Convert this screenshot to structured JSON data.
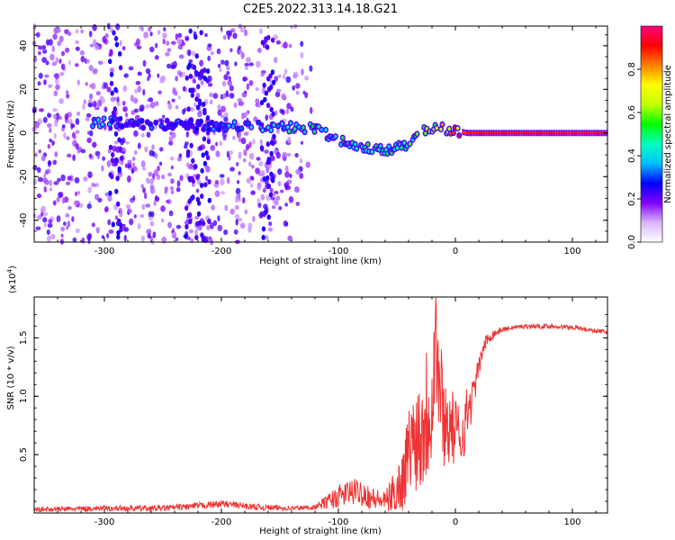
{
  "title": "C2E5.2022.313.14.18.G21",
  "chart_data": [
    {
      "type": "heatmap",
      "title": "C2E5.2022.313.14.18.G21",
      "xlabel": "Height of straight line (km)",
      "ylabel": "Frequency (Hz)",
      "xlim": [
        -360,
        130
      ],
      "ylim": [
        -50,
        49
      ],
      "x_ticks": [
        "-300",
        "-200",
        "-100",
        "0",
        "100"
      ],
      "y_ticks": [
        "-40",
        "-20",
        "0",
        "20",
        "40"
      ],
      "colorbar": {
        "label": "Normalized spectral amplitude",
        "range": [
          0,
          1
        ],
        "ticks": [
          "0.0",
          "0.2",
          "0.4",
          "0.6",
          "0.8"
        ],
        "colors": [
          "#ffffff",
          "#d9b3ff",
          "#8000ff",
          "#0000ff",
          "#00c0ff",
          "#00ffc0",
          "#00ff00",
          "#c0ff00",
          "#ffff00",
          "#ff8000",
          "#ff0000",
          "#ff0080"
        ]
      },
      "ridge": {
        "x": [
          -300,
          -280,
          -230,
          -200,
          -150,
          -120,
          -100,
          -80,
          -60,
          -40,
          -30,
          -20,
          -10,
          0,
          10,
          130
        ],
        "freq": [
          5,
          4,
          4,
          3,
          3,
          2,
          -3,
          -6,
          -8,
          -5,
          1,
          2,
          2,
          1,
          0,
          0
        ],
        "level": [
          0.4,
          0.3,
          0.3,
          0.35,
          0.45,
          0.5,
          0.5,
          0.5,
          0.55,
          0.55,
          0.6,
          0.7,
          0.75,
          0.85,
          0.9,
          0.95
        ]
      },
      "noise_extent_x": [
        -360,
        -120
      ]
    },
    {
      "type": "line",
      "xlabel": "Height of straight line (km)",
      "ylabel": "SNR (10 * v/v)",
      "y_multiplier": "(x10",
      "y_multiplier_exp": "4",
      "y_multiplier_close": ")",
      "xlim": [
        -360,
        130
      ],
      "ylim": [
        0,
        1.85
      ],
      "x_ticks": [
        "-300",
        "-200",
        "-100",
        "0",
        "100"
      ],
      "y_ticks": [
        "0.5",
        "1.0",
        "1.5"
      ],
      "color": "#ee3333",
      "series": {
        "x": [
          -360,
          -300,
          -250,
          -220,
          -200,
          -170,
          -140,
          -120,
          -100,
          -90,
          -80,
          -70,
          -60,
          -50,
          -45,
          -40,
          -35,
          -30,
          -25,
          -20,
          -17,
          -15,
          -12,
          -10,
          -5,
          0,
          5,
          10,
          15,
          20,
          25,
          30,
          40,
          50,
          60,
          80,
          100,
          120,
          130
        ],
        "y": [
          0.03,
          0.04,
          0.04,
          0.06,
          0.08,
          0.05,
          0.04,
          0.05,
          0.14,
          0.18,
          0.18,
          0.12,
          0.1,
          0.2,
          0.28,
          0.55,
          0.65,
          0.7,
          0.85,
          1.05,
          1.55,
          1.2,
          1.0,
          0.8,
          0.75,
          0.7,
          0.65,
          0.85,
          1.0,
          1.25,
          1.45,
          1.52,
          1.57,
          1.59,
          1.6,
          1.6,
          1.59,
          1.56,
          1.55
        ]
      },
      "noise": {
        "x": [
          -360,
          -200,
          -120,
          -100,
          -80,
          -60,
          -40,
          -30,
          -20,
          -10,
          0,
          10,
          20,
          30,
          40,
          130
        ],
        "amp": [
          0.02,
          0.03,
          0.02,
          0.1,
          0.12,
          0.08,
          0.35,
          0.55,
          0.7,
          0.4,
          0.3,
          0.25,
          0.08,
          0.05,
          0.02,
          0.02
        ]
      }
    }
  ]
}
